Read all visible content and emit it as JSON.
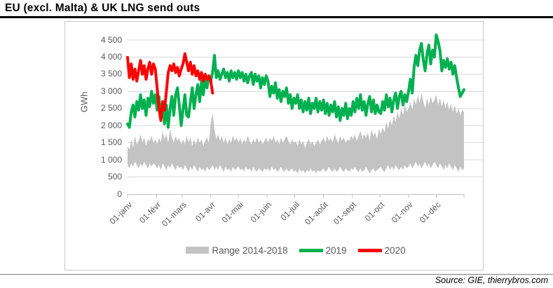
{
  "title": {
    "text": "EU (excl. Malta) & UK LNG send outs"
  },
  "source": {
    "text": "Source: GIE, thierrybros.com"
  },
  "colors": {
    "green": "#00B050",
    "red": "#FF0000",
    "band": "#C3C3C3",
    "gridline": "#D9D9D9",
    "axis_line": "#BFBFBF",
    "axis_text": "#595959",
    "title_text": "#000000",
    "top_rule": "#000000",
    "bottom_rule": "#7F7F7F"
  },
  "legend": {
    "items": [
      {
        "label": "Range 2014-2018",
        "swatch": "band",
        "color": "#C3C3C3"
      },
      {
        "label": "2019",
        "swatch": "line",
        "color": "#00B050"
      },
      {
        "label": "2020",
        "swatch": "line",
        "color": "#FF0000"
      }
    ]
  },
  "chart_data": {
    "type": "line",
    "title": "EU (excl. Malta) & UK LNG send outs",
    "xlabel": "",
    "ylabel": "GWh",
    "ylim": [
      0,
      4500
    ],
    "grid": true,
    "legend_position": "bottom",
    "x_unit": "day_of_year",
    "y_tick_labels": [
      "4 500",
      "4 000",
      "3 500",
      "3 000",
      "2 500",
      "2 000",
      "1 500",
      "1 000",
      "500",
      "0"
    ],
    "x_ticks": [
      {
        "day": 1,
        "label": "01-janv"
      },
      {
        "day": 32,
        "label": "01-févr"
      },
      {
        "day": 60,
        "label": "01-mars"
      },
      {
        "day": 91,
        "label": "01-avr"
      },
      {
        "day": 121,
        "label": "01-mai"
      },
      {
        "day": 152,
        "label": "01-juin"
      },
      {
        "day": 182,
        "label": "01-juil"
      },
      {
        "day": 213,
        "label": "01-août"
      },
      {
        "day": 244,
        "label": "01-sept"
      },
      {
        "day": 274,
        "label": "01-oct"
      },
      {
        "day": 305,
        "label": "01-nov"
      },
      {
        "day": 335,
        "label": "01-déc"
      }
    ],
    "axis_end_day": 365,
    "series": [
      {
        "name": "Range 2014-2018",
        "type": "band",
        "color": "#C3C3C3",
        "day_start": 1,
        "day_step": 2,
        "min": [
          850,
          750,
          900,
          800,
          950,
          850,
          750,
          900,
          800,
          950,
          850,
          750,
          900,
          800,
          900,
          850,
          750,
          850,
          700,
          900,
          800,
          700,
          850,
          750,
          900,
          800,
          700,
          850,
          750,
          800,
          700,
          850,
          750,
          650,
          800,
          700,
          850,
          750,
          650,
          800,
          700,
          750,
          650,
          800,
          700,
          750,
          850,
          700,
          800,
          700,
          850,
          750,
          650,
          800,
          700,
          750,
          650,
          800,
          700,
          750,
          800,
          700,
          750,
          650,
          800,
          700,
          750,
          650,
          800,
          700,
          650,
          750,
          700,
          650,
          750,
          700,
          750,
          650,
          800,
          700,
          750,
          650,
          700,
          800,
          700,
          650,
          750,
          650,
          700,
          750,
          650,
          700,
          600,
          750,
          650,
          700,
          600,
          700,
          650,
          750,
          650,
          700,
          600,
          700,
          650,
          700,
          750,
          650,
          700,
          800,
          700,
          650,
          750,
          650,
          700,
          800,
          700,
          650,
          750,
          700,
          650,
          750,
          700,
          800,
          700,
          650,
          750,
          650,
          700,
          800,
          700,
          600,
          700,
          750,
          650,
          700,
          750,
          800,
          700,
          650,
          750,
          850,
          700,
          800,
          700,
          850,
          750,
          700,
          800,
          700,
          850,
          750,
          800,
          900,
          750,
          850,
          950,
          800,
          900,
          750,
          850,
          950,
          800,
          900,
          750,
          850,
          950,
          850,
          750,
          900,
          800,
          700,
          850,
          750,
          900,
          800,
          700,
          850,
          750,
          650,
          800,
          700,
          750
        ],
        "max": [
          1400,
          1300,
          1600,
          1350,
          1700,
          1450,
          1550,
          1750,
          1500,
          1650,
          1400,
          1600,
          1550,
          1700,
          1500,
          1600,
          1450,
          1650,
          1500,
          1850,
          1600,
          1750,
          1500,
          1900,
          1650,
          1500,
          1700,
          1550,
          1650,
          1450,
          1600,
          1450,
          1700,
          1500,
          1650,
          1400,
          1600,
          1450,
          1650,
          1500,
          1600,
          1400,
          1550,
          1650,
          1500,
          2100,
          2350,
          1900,
          1600,
          1750,
          1550,
          1700,
          1500,
          1650,
          1450,
          1600,
          1500,
          1700,
          1550,
          1650,
          1500,
          1650,
          1450,
          1600,
          1500,
          1700,
          1550,
          1450,
          1600,
          1500,
          1650,
          1500,
          1600,
          1450,
          1550,
          1650,
          1500,
          1650,
          1550,
          1700,
          1500,
          1600,
          1450,
          1650,
          1500,
          1600,
          1700,
          1550,
          1450,
          1600,
          1500,
          1550,
          1400,
          1600,
          1450,
          1550,
          1350,
          1500,
          1600,
          1450,
          1550,
          1400,
          1500,
          1600,
          1450,
          1550,
          1650,
          1500,
          1700,
          1550,
          1650,
          1500,
          1750,
          1600,
          1500,
          1700,
          1550,
          1650,
          1500,
          1600,
          1550,
          1700,
          1600,
          1750,
          1550,
          1700,
          1850,
          1600,
          1750,
          1650,
          1800,
          1550,
          1900,
          1700,
          1800,
          1600,
          1900,
          1750,
          1950,
          1800,
          2100,
          1900,
          2200,
          2000,
          2300,
          2100,
          2400,
          2200,
          2500,
          2300,
          2600,
          2400,
          2500,
          2700,
          2450,
          2800,
          2600,
          2900,
          2650,
          2950,
          2700,
          2500,
          2800,
          2600,
          2850,
          2650,
          2750,
          2900,
          2600,
          2800,
          2550,
          2750,
          2500,
          2700,
          2450,
          2650,
          2400,
          2600,
          2350,
          2500,
          2300,
          2450,
          2400
        ]
      },
      {
        "name": "2019",
        "type": "line",
        "color": "#00B050",
        "day_start": 1,
        "day_step": 2,
        "values": [
          2050,
          1950,
          2400,
          2600,
          2250,
          2700,
          2450,
          2900,
          2500,
          2750,
          2300,
          2800,
          2550,
          3000,
          2650,
          2900,
          2450,
          2850,
          2200,
          2700,
          2050,
          2600,
          1950,
          2500,
          2850,
          2300,
          2900,
          3100,
          2600,
          2000,
          2450,
          2900,
          2300,
          2250,
          2700,
          3100,
          2500,
          2900,
          3200,
          2700,
          3300,
          2900,
          3400,
          3100,
          3450,
          3300,
          3550,
          4050,
          3400,
          3600,
          3350,
          3500,
          3650,
          3400,
          3550,
          3300,
          3600,
          3400,
          3550,
          3350,
          3600,
          3400,
          3550,
          3300,
          3500,
          3250,
          3450,
          3550,
          3200,
          3500,
          3300,
          3450,
          3100,
          3400,
          3200,
          3450,
          3300,
          2850,
          3150,
          2950,
          3250,
          2800,
          3050,
          2700,
          3000,
          2850,
          3100,
          2650,
          2900,
          2500,
          2800,
          2650,
          2900,
          2500,
          2750,
          2400,
          2700,
          2450,
          2800,
          2350,
          2650,
          2500,
          2800,
          2400,
          2700,
          2450,
          2750,
          2350,
          2650,
          2300,
          2600,
          2400,
          2700,
          2250,
          2550,
          2150,
          2500,
          2300,
          2650,
          2200,
          2500,
          2300,
          2700,
          2400,
          2800,
          2500,
          2900,
          2450,
          2700,
          2300,
          2650,
          2850,
          2400,
          2750,
          2350,
          2600,
          2400,
          2350,
          2700,
          2450,
          2900,
          2550,
          2800,
          2400,
          2750,
          2950,
          2500,
          2850,
          3000,
          2600,
          2900,
          2700,
          3000,
          3350,
          2950,
          3700,
          4050,
          3750,
          4200,
          4400,
          3900,
          3600,
          4100,
          4350,
          3800,
          4200,
          4000,
          4650,
          4450,
          4200,
          3600,
          3900,
          3700,
          3950,
          3650,
          3850,
          3500,
          3750,
          3400,
          3100,
          2850,
          2950,
          3050
        ]
      },
      {
        "name": "2020",
        "type": "line",
        "color": "#FF0000",
        "day_start": 1,
        "day_step": 2,
        "values": [
          3990,
          3400,
          3800,
          3350,
          3650,
          3300,
          3600,
          3900,
          3500,
          3750,
          3350,
          3650,
          3850,
          3500,
          3800,
          3650,
          3100,
          2500,
          2150,
          2700,
          2450,
          3000,
          3550,
          3750,
          3600,
          3800,
          3550,
          3700,
          3450,
          3650,
          3800,
          4100,
          3850,
          3600,
          3850,
          3500,
          3750,
          3450,
          3600,
          3350,
          3550,
          3300,
          3500,
          3350,
          3450,
          3300,
          2950
        ]
      }
    ]
  }
}
